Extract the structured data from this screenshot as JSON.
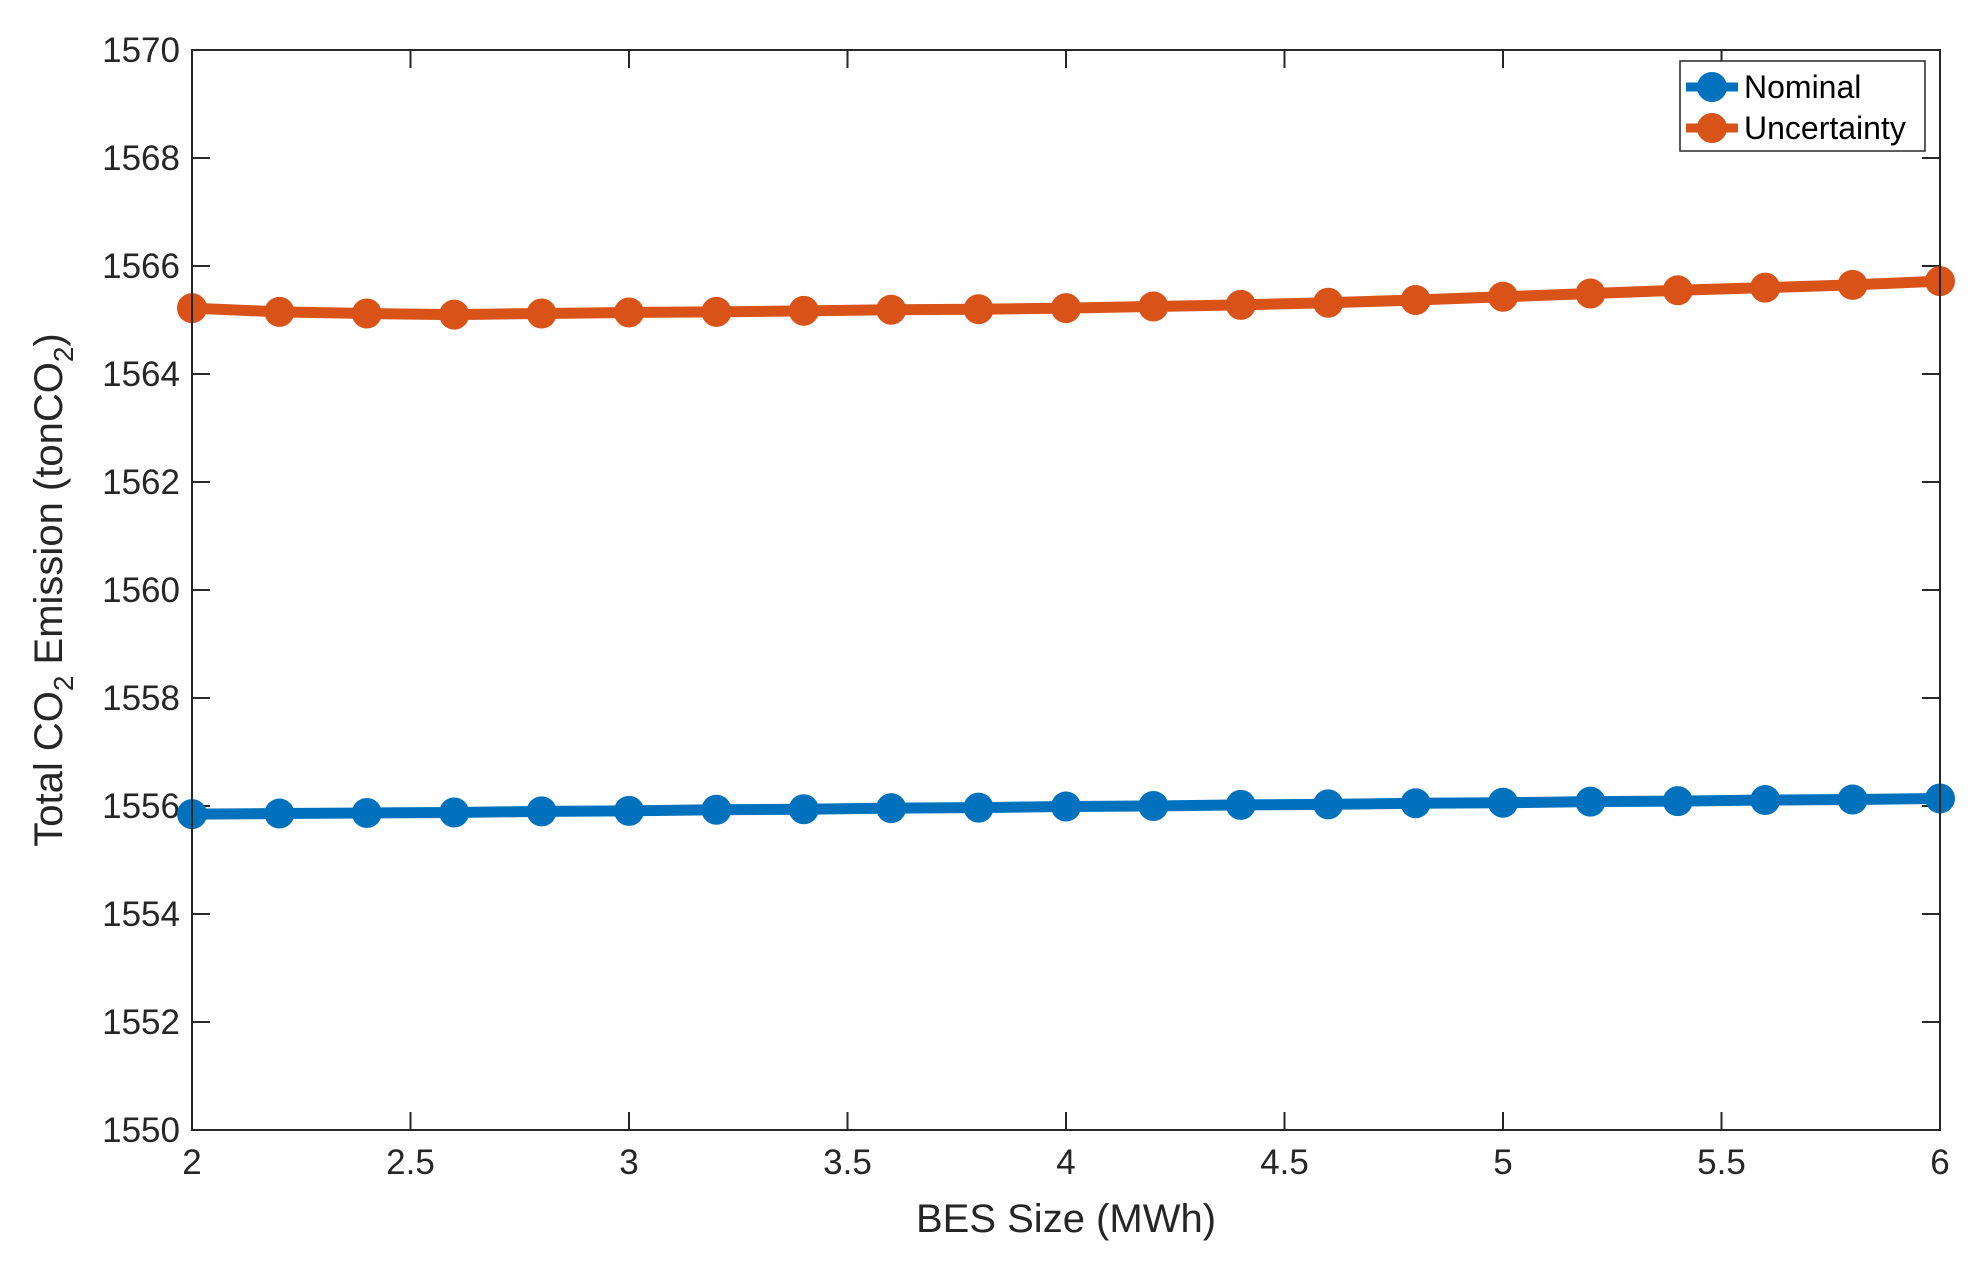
{
  "chart_data": {
    "type": "line",
    "xlabel": "BES Size (MWh)",
    "ylabel": {
      "p1": "Total CO",
      "sub1": "2",
      "p2": " Emission (tonCO",
      "sub2": "2",
      "p3": ")"
    },
    "xlim": [
      2,
      6
    ],
    "ylim": [
      1550,
      1570
    ],
    "xticks": [
      "2",
      "2.5",
      "3",
      "3.5",
      "4",
      "4.5",
      "5",
      "5.5",
      "6"
    ],
    "yticks": [
      "1550",
      "1552",
      "1554",
      "1556",
      "1558",
      "1560",
      "1562",
      "1564",
      "1566",
      "1568",
      "1570"
    ],
    "grid": false,
    "legend_position": "top-right",
    "x": [
      2.0,
      2.2,
      2.4,
      2.6,
      2.8,
      3.0,
      3.2,
      3.4,
      3.6,
      3.8,
      4.0,
      4.2,
      4.4,
      4.6,
      4.8,
      5.0,
      5.2,
      5.4,
      5.6,
      5.8,
      6.0
    ],
    "series": [
      {
        "name": "Nominal",
        "color": "#0072BD",
        "marker": "circle",
        "values": [
          1555.85,
          1555.86,
          1555.87,
          1555.88,
          1555.9,
          1555.91,
          1555.93,
          1555.94,
          1555.96,
          1555.97,
          1555.99,
          1556.0,
          1556.02,
          1556.03,
          1556.05,
          1556.06,
          1556.08,
          1556.09,
          1556.11,
          1556.12,
          1556.14
        ]
      },
      {
        "name": "Uncertainty",
        "color": "#D95319",
        "marker": "circle",
        "values": [
          1565.22,
          1565.15,
          1565.12,
          1565.1,
          1565.12,
          1565.14,
          1565.15,
          1565.17,
          1565.19,
          1565.2,
          1565.22,
          1565.25,
          1565.28,
          1565.32,
          1565.37,
          1565.43,
          1565.49,
          1565.55,
          1565.6,
          1565.65,
          1565.72
        ]
      }
    ]
  }
}
